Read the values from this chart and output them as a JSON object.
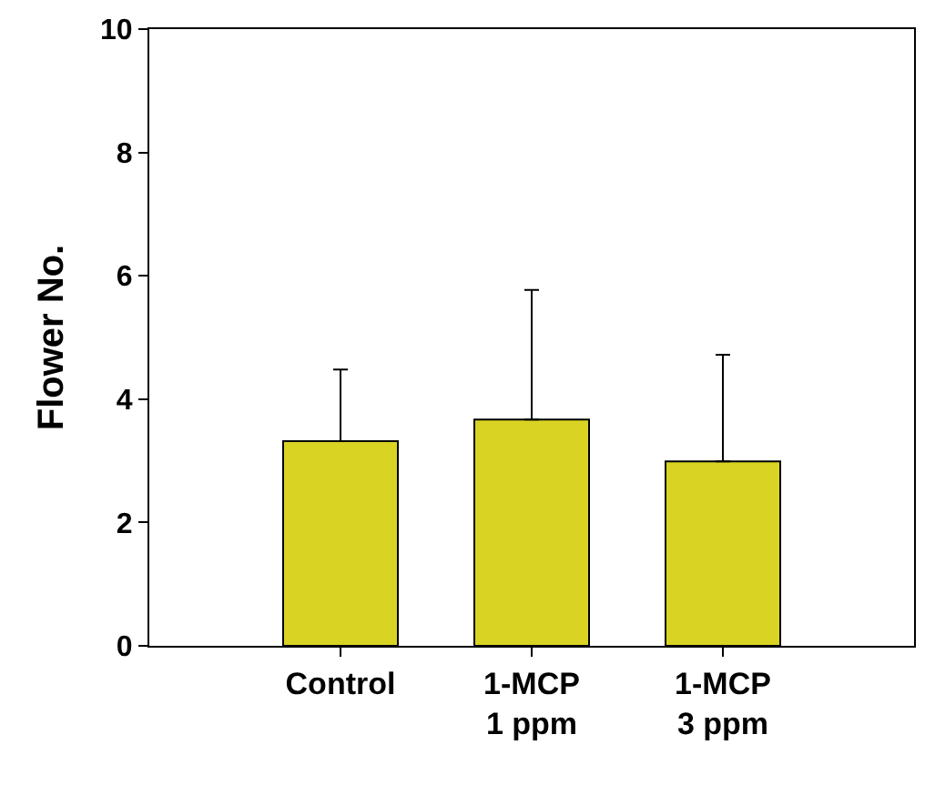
{
  "chart_data": {
    "type": "bar",
    "ylabel": "Flower No.",
    "categories": [
      "Control",
      "1-MCP\n1 ppm",
      "1-MCP\n3 ppm"
    ],
    "values": [
      3.32,
      3.67,
      2.99
    ],
    "errors": [
      [
        3.32,
        4.48
      ],
      [
        3.67,
        5.77
      ],
      [
        2.99,
        4.72
      ]
    ],
    "color": "#d9d424",
    "ylim": [
      0,
      10
    ],
    "yticks": [
      0,
      2,
      4,
      6,
      8,
      10
    ],
    "grid": false
  }
}
